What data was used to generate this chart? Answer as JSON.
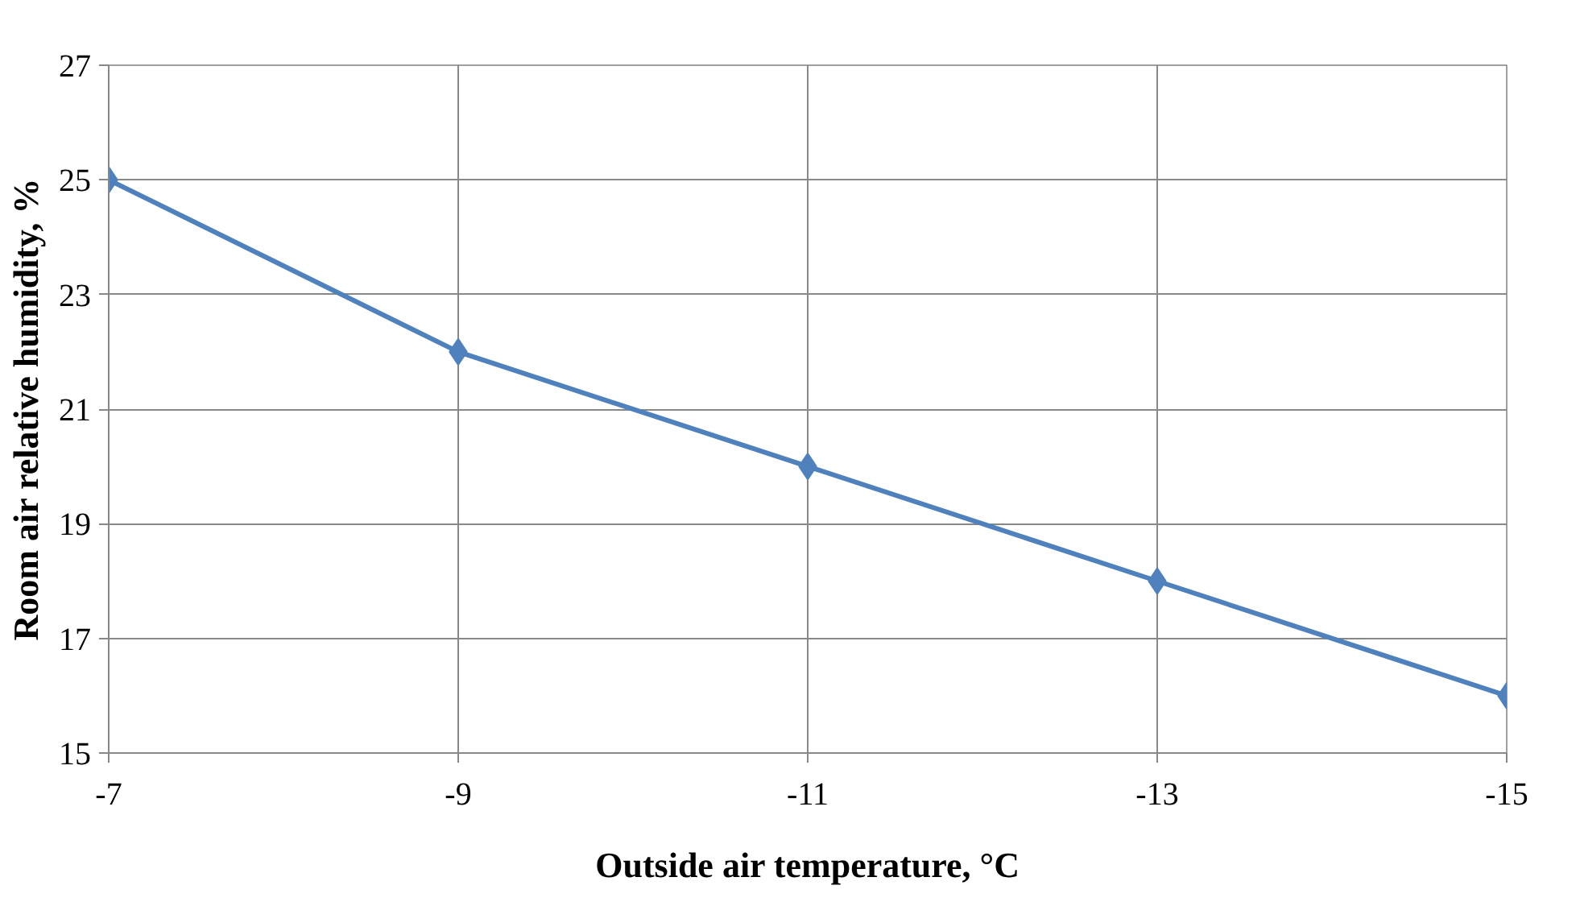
{
  "chart_data": {
    "type": "line",
    "xlabel": "Outside air temperature, °C",
    "ylabel": "Room air relative humidity, %",
    "categories": [
      "-7",
      "-9",
      "-11",
      "-13",
      "-15"
    ],
    "series": [
      {
        "color": "#4f81bd",
        "values": [
          25,
          22,
          20,
          18,
          16
        ]
      }
    ],
    "ylim": [
      15,
      27
    ],
    "yticks": [
      15,
      17,
      19,
      21,
      23,
      25,
      27
    ],
    "grid": true,
    "marker": "diamond",
    "line_style": "solid"
  }
}
